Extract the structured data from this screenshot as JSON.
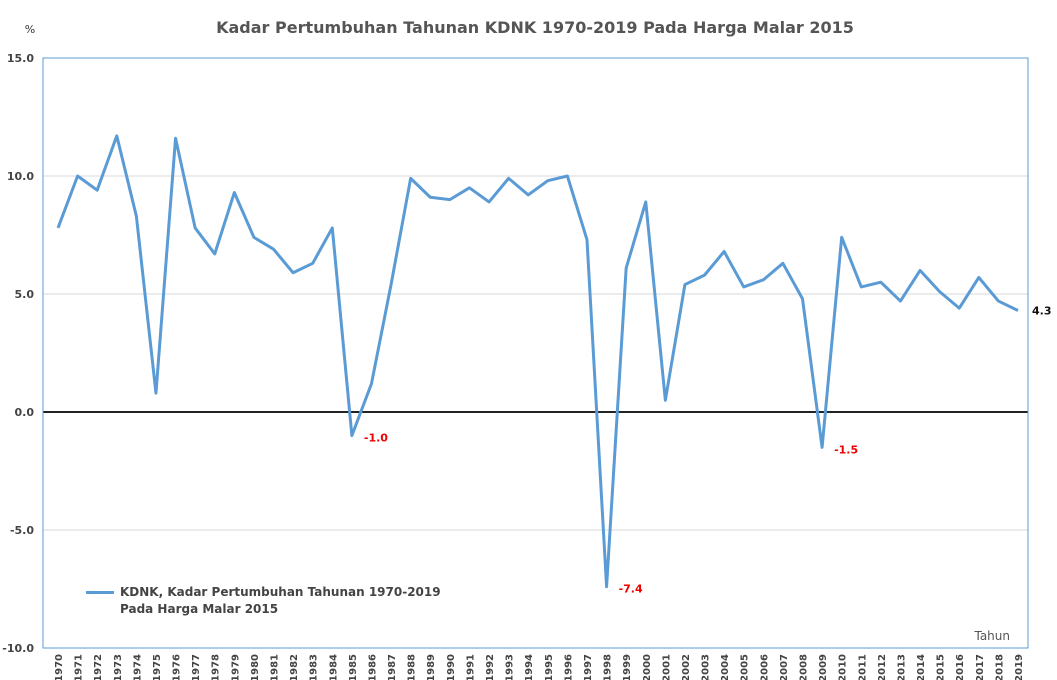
{
  "chart_data": {
    "type": "line",
    "title": "Kadar Pertumbuhan Tahunan KDNK 1970-2019 Pada Harga Malar 2015",
    "y_label": "%",
    "x_label": "Tahun",
    "categories": [
      "1970",
      "1971",
      "1972",
      "1973",
      "1974",
      "1975",
      "1976",
      "1977",
      "1978",
      "1979",
      "1980",
      "1981",
      "1982",
      "1983",
      "1984",
      "1985",
      "1986",
      "1987",
      "1988",
      "1989",
      "1990",
      "1991",
      "1992",
      "1993",
      "1994",
      "1995",
      "1996",
      "1997",
      "1998",
      "1999",
      "2000",
      "2001",
      "2002",
      "2003",
      "2004",
      "2005",
      "2006",
      "2007",
      "2008",
      "2009",
      "2010",
      "2011",
      "2012",
      "2013",
      "2014",
      "2015",
      "2016",
      "2017",
      "2018",
      "2019"
    ],
    "series": [
      {
        "name": "KDNK, Kadar Pertumbuhan Tahunan 1970-2019 Pada Harga Malar 2015",
        "color": "#5b9bd5",
        "values": [
          7.8,
          10.0,
          9.4,
          11.7,
          8.3,
          0.8,
          11.6,
          7.8,
          6.7,
          9.3,
          7.4,
          6.9,
          5.9,
          6.3,
          7.8,
          -1.0,
          1.2,
          5.4,
          9.9,
          9.1,
          9.0,
          9.5,
          8.9,
          9.9,
          9.2,
          9.8,
          10.0,
          7.3,
          -7.4,
          6.1,
          8.9,
          0.5,
          5.4,
          5.8,
          6.8,
          5.3,
          5.6,
          6.3,
          4.8,
          -1.5,
          7.4,
          5.3,
          5.5,
          4.7,
          6.0,
          5.1,
          4.4,
          5.7,
          4.7,
          4.3
        ],
        "value_labels": [
          null,
          null,
          null,
          null,
          null,
          null,
          null,
          null,
          null,
          null,
          null,
          null,
          null,
          null,
          null,
          "-1.0",
          null,
          null,
          null,
          null,
          null,
          null,
          null,
          null,
          null,
          null,
          null,
          null,
          "-7.4",
          null,
          null,
          null,
          null,
          null,
          null,
          null,
          null,
          null,
          null,
          "-1.5",
          null,
          null,
          null,
          null,
          null,
          null,
          null,
          null,
          null,
          "4.3"
        ]
      }
    ],
    "ylim": [
      -10,
      15
    ],
    "yticks": [
      {
        "value": -10,
        "label": "-10.0"
      },
      {
        "value": -5,
        "label": "-5.0"
      },
      {
        "value": 0,
        "label": "0.0"
      },
      {
        "value": 5,
        "label": "5.0"
      },
      {
        "value": 10,
        "label": "10.0"
      },
      {
        "value": 15,
        "label": "15.0"
      }
    ],
    "grid": true
  }
}
